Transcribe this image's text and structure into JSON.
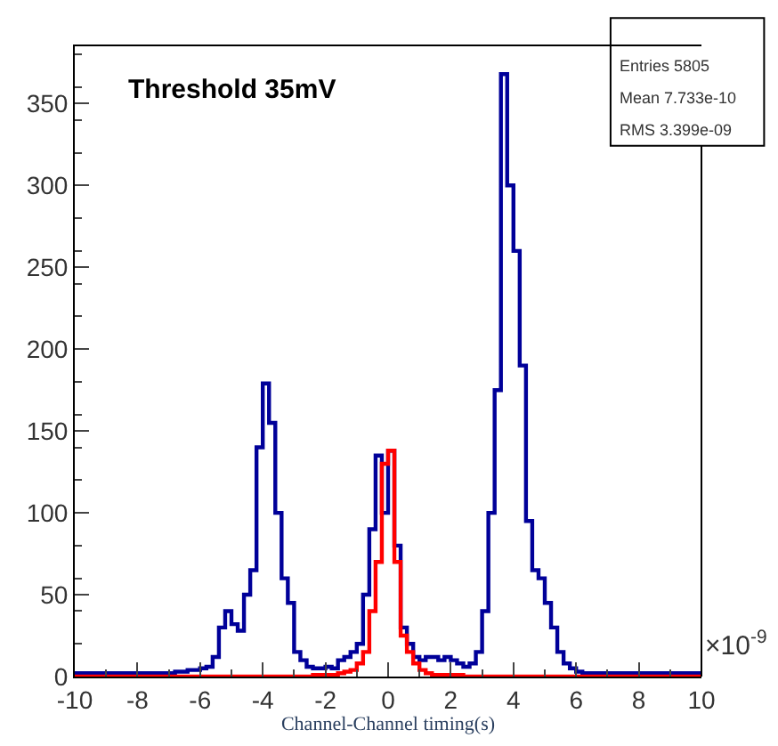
{
  "chart_data": {
    "type": "histogram",
    "title": "Threshold 35mV",
    "xlabel": "Channel-Channel timing(s)",
    "annotations": [
      "Entries 5805",
      "Mean 7.733e-10",
      "RMS 3.399e-09",
      "×10$^{-9}$"
    ],
    "bins": [
      -10,
      -9.8,
      -9.6,
      -9.4,
      -9.2,
      -9,
      -8.8,
      -8.6,
      -8.4,
      -8.2,
      -8,
      -7.8,
      -7.6,
      -7.4,
      -7.2,
      -7,
      -6.8,
      -6.6,
      -6.4,
      -6.2,
      -6,
      -5.8,
      -5.6,
      -5.4,
      -5.2,
      -5,
      -4.8,
      -4.6,
      -4.4,
      -4.2,
      -4,
      -3.8,
      -3.6,
      -3.4,
      -3.2,
      -3,
      -2.8,
      -2.6,
      -2.4,
      -2.2,
      -2,
      -1.8,
      -1.6,
      -1.4,
      -1.2,
      -1,
      -0.8,
      -0.6,
      -0.4,
      -0.2,
      0,
      0.2,
      0.4,
      0.6,
      0.8,
      1,
      1.2,
      1.4,
      1.6,
      1.8,
      2,
      2.2,
      2.4,
      2.6,
      2.8,
      3,
      3.2,
      3.4,
      3.6,
      3.8,
      4,
      4.2,
      4.4,
      4.6,
      4.8,
      5,
      5.2,
      5.4,
      5.6,
      5.8,
      6,
      6.2,
      6.4,
      6.6,
      6.8,
      7,
      7.2,
      7.4,
      7.6,
      7.8,
      8,
      8.2,
      8.4,
      8.6,
      8.8,
      9,
      9.2,
      9.4,
      9.6,
      9.8,
      10
    ],
    "series": [
      {
        "color": "#000099",
        "values": [
          2,
          2,
          2,
          2,
          2,
          2,
          2,
          2,
          2,
          2,
          2,
          2,
          2,
          2,
          2,
          2,
          3,
          3,
          4,
          4,
          5,
          6,
          12,
          30,
          40,
          32,
          28,
          50,
          65,
          140,
          179,
          155,
          100,
          60,
          45,
          15,
          10,
          6,
          5,
          5,
          6,
          5,
          10,
          12,
          15,
          20,
          50,
          90,
          135,
          100,
          138,
          80,
          30,
          20,
          12,
          10,
          12,
          12,
          10,
          12,
          10,
          8,
          6,
          8,
          15,
          40,
          100,
          175,
          368,
          300,
          260,
          190,
          95,
          65,
          60,
          45,
          30,
          15,
          8,
          5,
          3,
          2,
          2,
          2,
          2,
          2,
          2,
          2,
          2,
          2,
          2,
          2,
          2,
          2,
          2,
          2,
          2,
          2,
          2,
          2
        ]
      },
      {
        "color": "#ff0000",
        "values": [
          0,
          0,
          0,
          0,
          0,
          0,
          0,
          0,
          0,
          0,
          0,
          0,
          0,
          0,
          0,
          0,
          0,
          0,
          0,
          0,
          0,
          0,
          0,
          0,
          0,
          0,
          0,
          0,
          0,
          0,
          0,
          0,
          0,
          0,
          0,
          0,
          0,
          0,
          1,
          1,
          1,
          1,
          2,
          3,
          4,
          8,
          15,
          40,
          70,
          130,
          138,
          70,
          25,
          15,
          8,
          4,
          2,
          1,
          1,
          1,
          1,
          1,
          0,
          0,
          0,
          0,
          0,
          0,
          0,
          0,
          0,
          0,
          0,
          0,
          0,
          0,
          0,
          0,
          0,
          0,
          0,
          0,
          0,
          0,
          0,
          0,
          0,
          0,
          0,
          0,
          0,
          0,
          0,
          0,
          0,
          0,
          0,
          0,
          0,
          0
        ]
      }
    ],
    "xlim": [
      -10,
      10
    ],
    "xticks": [
      -10,
      -8,
      -6,
      -4,
      -2,
      0,
      2,
      4,
      6,
      8,
      10
    ],
    "yticks": [
      0,
      50,
      100,
      150,
      200,
      250,
      300,
      350
    ],
    "ylim": [
      0,
      385
    ]
  }
}
